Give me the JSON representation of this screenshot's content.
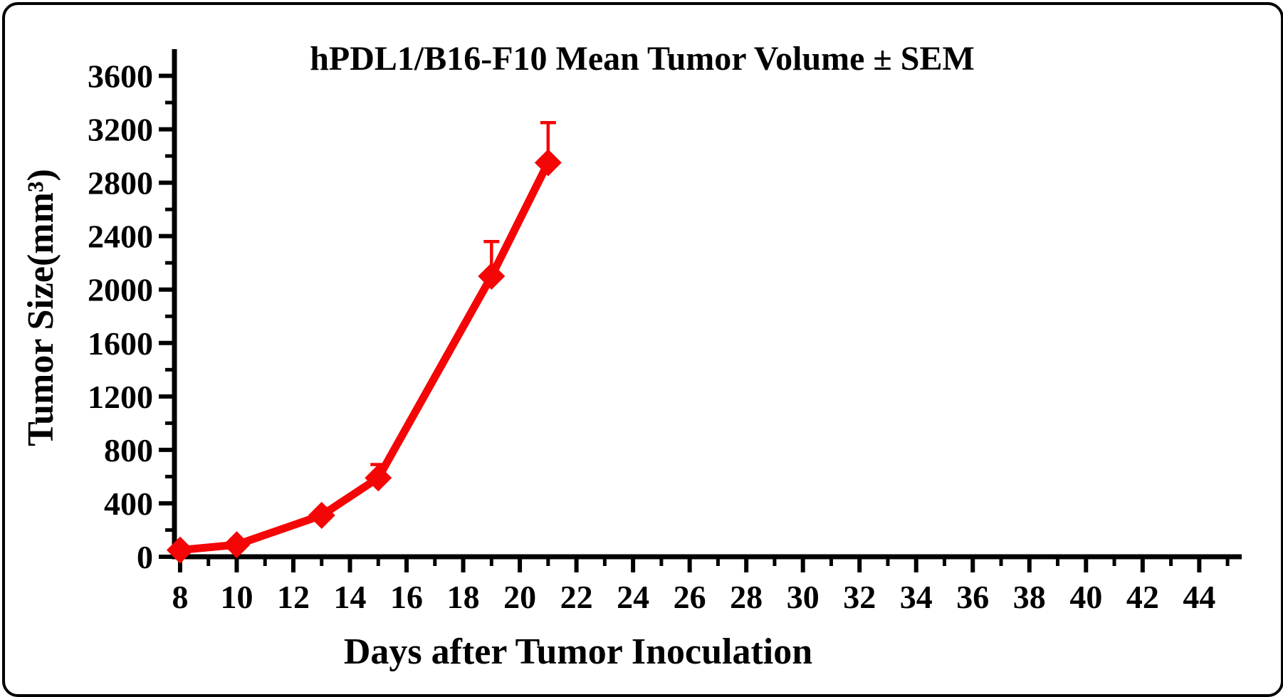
{
  "chart_data": {
    "type": "line",
    "title": "hPDL1/B16-F10 Mean Tumor Volume ± SEM",
    "xlabel": "Days after Tumor Inoculation",
    "ylabel": "Tumor Size(mm³)",
    "grid": false,
    "legend": false,
    "error_bars": "SEM, upward caps only",
    "x_axis": {
      "min": 7.8,
      "max": 45.5,
      "tick_labels": [
        8,
        10,
        12,
        14,
        16,
        18,
        20,
        22,
        24,
        26,
        28,
        30,
        32,
        34,
        36,
        38,
        40,
        42,
        44
      ],
      "minor_ticks": [
        9,
        11,
        13,
        15,
        17,
        19,
        21,
        23,
        25,
        27,
        29,
        31,
        33,
        35,
        37,
        39,
        41,
        43,
        45
      ]
    },
    "y_axis": {
      "min": 0,
      "max": 3800,
      "tick_labels": [
        0,
        400,
        800,
        1200,
        1600,
        2000,
        2400,
        2800,
        3200,
        3600
      ],
      "minor_ticks": [
        200,
        600,
        1000,
        1400,
        1800,
        2200,
        2600,
        3000,
        3400
      ]
    },
    "series": [
      {
        "name": "hPDL1/B16-F10 mean tumor volume",
        "color": "#f40606",
        "marker": "diamond",
        "x": [
          8,
          10,
          13,
          15,
          19,
          21
        ],
        "y": [
          50,
          90,
          310,
          590,
          2100,
          2950
        ],
        "sem_upper": [
          0,
          0,
          0,
          100,
          260,
          300
        ]
      }
    ]
  },
  "colors": {
    "axis": "#000000",
    "text": "#000000",
    "background": "#ffffff",
    "frame_border": "#000000",
    "series_red": "#f40606"
  }
}
